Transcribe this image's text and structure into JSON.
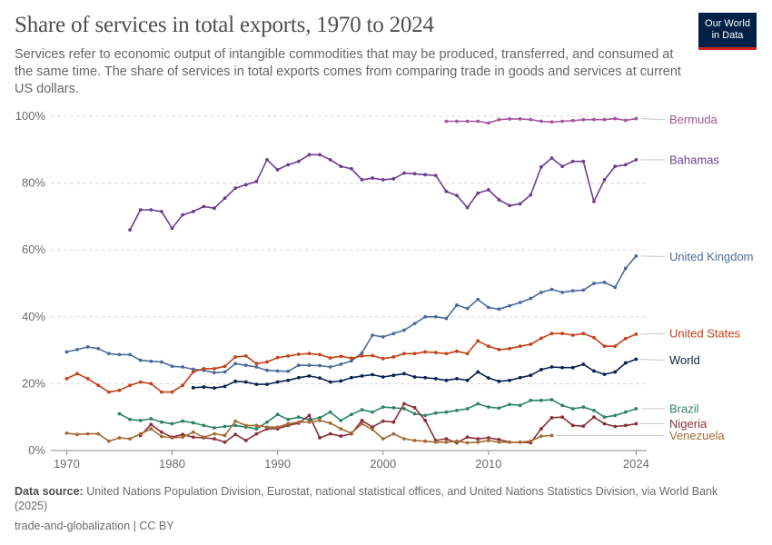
{
  "header": {
    "title": "Share of services in total exports, 1970 to 2024",
    "subtitle": "Services refer to economic output of intangible commodities that may be produced, transferred, and consumed at the same time. The share of services in total exports comes from comparing trade in goods and services at current US dollars."
  },
  "logo": {
    "line1": "Our World",
    "line2": "in Data"
  },
  "footer": {
    "source_label": "Data source:",
    "source_text": "United Nations Population Division, Eurostat, national statistical offices, and United Nations Statistics Division, via World Bank (2025)",
    "license": "trade-and-globalization | CC BY"
  },
  "chart_data": {
    "type": "line",
    "title": "Share of services in total exports, 1970 to 2024",
    "xlim": [
      1968.5,
      2025
    ],
    "ylim": [
      0,
      100
    ],
    "x_ticks": [
      {
        "value": 1970,
        "label": "1970"
      },
      {
        "value": 1980,
        "label": "1980"
      },
      {
        "value": 1990,
        "label": "1990"
      },
      {
        "value": 2000,
        "label": "2000"
      },
      {
        "value": 2010,
        "label": "2010"
      },
      {
        "value": 2024,
        "label": "2024"
      }
    ],
    "y_ticks": [
      {
        "value": 0,
        "label": "0%"
      },
      {
        "value": 20,
        "label": "20%"
      },
      {
        "value": 40,
        "label": "40%"
      },
      {
        "value": 60,
        "label": "60%"
      },
      {
        "value": 80,
        "label": "80%"
      },
      {
        "value": 100,
        "label": "100%"
      }
    ],
    "grid": "horizontal dashed",
    "legend": "inline labels at right",
    "series": [
      {
        "name": "Bermuda",
        "color": "#a2559c",
        "label_value": 99,
        "x": [
          2006,
          2007,
          2008,
          2009,
          2010,
          2011,
          2012,
          2013,
          2014,
          2015,
          2016,
          2017,
          2018,
          2019,
          2020,
          2021,
          2022,
          2023,
          2024
        ],
        "values": [
          98.5,
          98.5,
          98.5,
          98.5,
          98,
          99,
          99.2,
          99.2,
          99,
          98.5,
          98.3,
          98.5,
          98.7,
          99,
          99,
          99,
          99.3,
          98.8,
          99.3
        ]
      },
      {
        "name": "Bahamas",
        "color": "#6d3e91",
        "label_value": 87,
        "x": [
          1976,
          1977,
          1978,
          1979,
          1980,
          1981,
          1982,
          1983,
          1984,
          1985,
          1986,
          1987,
          1988,
          1989,
          1990,
          1991,
          1992,
          1993,
          1994,
          1995,
          1996,
          1997,
          1998,
          1999,
          2000,
          2001,
          2002,
          2003,
          2004,
          2005,
          2006,
          2007,
          2008,
          2009,
          2010,
          2011,
          2012,
          2013,
          2014,
          2015,
          2016,
          2017,
          2018,
          2019,
          2020,
          2021,
          2022,
          2023,
          2024
        ],
        "values": [
          66,
          72,
          72,
          71.5,
          66.5,
          70.5,
          71.5,
          73,
          72.5,
          75.5,
          78.5,
          79.5,
          80.5,
          87,
          84,
          85.5,
          86.5,
          88.5,
          88.5,
          87,
          85,
          84.3,
          81,
          81.5,
          81,
          81.3,
          83,
          82.8,
          82.5,
          82.3,
          77.5,
          76.3,
          72.7,
          77,
          78,
          75,
          73.3,
          73.8,
          76.5,
          84.8,
          87.5,
          85,
          86.5,
          86.5,
          74.5,
          81,
          85,
          85.5,
          87
        ]
      },
      {
        "name": "United Kingdom",
        "color": "#4c6a9c",
        "label_value": 58,
        "x": [
          1970,
          1971,
          1972,
          1973,
          1974,
          1975,
          1976,
          1977,
          1978,
          1979,
          1980,
          1981,
          1982,
          1983,
          1984,
          1985,
          1986,
          1987,
          1988,
          1989,
          1990,
          1991,
          1992,
          1993,
          1994,
          1995,
          1996,
          1997,
          1998,
          1999,
          2000,
          2001,
          2002,
          2003,
          2004,
          2005,
          2006,
          2007,
          2008,
          2009,
          2010,
          2011,
          2012,
          2013,
          2014,
          2015,
          2016,
          2017,
          2018,
          2019,
          2020,
          2021,
          2022,
          2023,
          2024
        ],
        "values": [
          29.5,
          30.2,
          31,
          30.5,
          29,
          28.7,
          28.7,
          27,
          26.7,
          26.5,
          25.2,
          25,
          24.3,
          24,
          23.3,
          23.5,
          26,
          25.5,
          25,
          24,
          23.8,
          23.7,
          25.5,
          25.5,
          25.4,
          25,
          25.8,
          26.8,
          29.2,
          34.5,
          34,
          35,
          36,
          38,
          40,
          40,
          39.5,
          43.5,
          42.5,
          45.2,
          42.8,
          42.3,
          43.3,
          44.3,
          45.5,
          47.3,
          48.2,
          47.3,
          47.8,
          48,
          50,
          50.3,
          48.8,
          54.5,
          58.2
        ]
      },
      {
        "name": "United States",
        "color": "#c4411a",
        "label_value": 35,
        "x": [
          1970,
          1971,
          1972,
          1973,
          1974,
          1975,
          1976,
          1977,
          1978,
          1979,
          1980,
          1981,
          1982,
          1983,
          1984,
          1985,
          1986,
          1987,
          1988,
          1989,
          1990,
          1991,
          1992,
          1993,
          1994,
          1995,
          1996,
          1997,
          1998,
          1999,
          2000,
          2001,
          2002,
          2003,
          2004,
          2005,
          2006,
          2007,
          2008,
          2009,
          2010,
          2011,
          2012,
          2013,
          2014,
          2015,
          2016,
          2017,
          2018,
          2019,
          2020,
          2021,
          2022,
          2023,
          2024
        ],
        "values": [
          21.5,
          23,
          21.5,
          19.5,
          17.5,
          18,
          19.5,
          20.5,
          20,
          17.5,
          17.5,
          19.5,
          23.5,
          24.5,
          24.5,
          25.2,
          28,
          28.3,
          26,
          26.5,
          27.8,
          28.3,
          28.8,
          29,
          28.7,
          27.7,
          28.2,
          27.6,
          28.3,
          28.4,
          27.5,
          28,
          29,
          29,
          29.5,
          29.3,
          29,
          29.7,
          29,
          32.8,
          31.2,
          30.2,
          30.5,
          31.2,
          31.8,
          33.6,
          35,
          35,
          34.5,
          35,
          33.8,
          31.2,
          31.2,
          33.5,
          34.8
        ]
      },
      {
        "name": "World",
        "color": "#0a2150",
        "label_value": 27,
        "x": [
          1982,
          1983,
          1984,
          1985,
          1986,
          1987,
          1988,
          1989,
          1990,
          1991,
          1992,
          1993,
          1994,
          1995,
          1996,
          1997,
          1998,
          1999,
          2000,
          2001,
          2002,
          2003,
          2004,
          2005,
          2006,
          2007,
          2008,
          2009,
          2010,
          2011,
          2012,
          2013,
          2014,
          2015,
          2016,
          2017,
          2018,
          2019,
          2020,
          2021,
          2022,
          2023,
          2024
        ],
        "values": [
          18.8,
          19,
          18.7,
          19.2,
          20.7,
          20.5,
          19.8,
          19.8,
          20.5,
          21,
          21.8,
          22.3,
          21.7,
          20.5,
          20.8,
          21.8,
          22.3,
          22.7,
          22,
          22.5,
          23,
          22,
          21.8,
          21.5,
          21,
          21.5,
          21,
          23.5,
          21.7,
          20.7,
          21,
          21.8,
          22.5,
          24.2,
          25,
          24.8,
          24.8,
          25.8,
          23.8,
          22.8,
          23.5,
          26.2,
          27.3
        ]
      },
      {
        "name": "Brazil",
        "color": "#2c8465",
        "label_value": 12.5,
        "x": [
          1975,
          1976,
          1977,
          1978,
          1979,
          1980,
          1981,
          1982,
          1983,
          1984,
          1985,
          1986,
          1987,
          1988,
          1989,
          1990,
          1991,
          1992,
          1993,
          1994,
          1995,
          1996,
          1997,
          1998,
          1999,
          2000,
          2001,
          2002,
          2003,
          2004,
          2005,
          2006,
          2007,
          2008,
          2009,
          2010,
          2011,
          2012,
          2013,
          2014,
          2015,
          2016,
          2017,
          2018,
          2019,
          2020,
          2021,
          2022,
          2023,
          2024
        ],
        "values": [
          11,
          9.3,
          9,
          9.5,
          8.5,
          8,
          8.8,
          8.3,
          7.5,
          6.8,
          7.2,
          7.5,
          7,
          6.5,
          8.5,
          10.8,
          9.3,
          10,
          9.2,
          9.8,
          11.5,
          9,
          10.8,
          12.2,
          11.5,
          13,
          12.8,
          12.5,
          11,
          10.5,
          11.2,
          11.5,
          12,
          12.5,
          14,
          13,
          12.7,
          13.8,
          13.5,
          15,
          15,
          15.2,
          13.5,
          12.5,
          13,
          12,
          10,
          10.5,
          11.5,
          12.5
        ]
      },
      {
        "name": "Nigeria",
        "color": "#883039",
        "label_value": 8,
        "x": [
          1977,
          1978,
          1979,
          1980,
          1981,
          1982,
          1983,
          1984,
          1985,
          1986,
          1987,
          1988,
          1989,
          1990,
          1991,
          1992,
          1993,
          1994,
          1995,
          1996,
          1997,
          1998,
          1999,
          2000,
          2001,
          2002,
          2003,
          2004,
          2005,
          2006,
          2007,
          2008,
          2009,
          2010,
          2011,
          2012,
          2013,
          2014,
          2015,
          2016,
          2017,
          2018,
          2019,
          2020,
          2021,
          2022,
          2023,
          2024
        ],
        "values": [
          4.5,
          7.8,
          5.5,
          4,
          4.8,
          4,
          3.8,
          3.5,
          2.5,
          4.8,
          3,
          5,
          6.5,
          6.5,
          7.5,
          8.2,
          10.5,
          3.8,
          5,
          4.3,
          5,
          9,
          7,
          8.8,
          8.5,
          14,
          12.8,
          9,
          3,
          3.5,
          2.3,
          4,
          3.5,
          3.8,
          3.3,
          2.5,
          2.5,
          2.3,
          6.5,
          9.8,
          10,
          7.5,
          7.3,
          10,
          8,
          7.2,
          7.5,
          8
        ]
      },
      {
        "name": "Venezuela",
        "color": "#a56a36",
        "label_value": 4.5,
        "x": [
          1970,
          1971,
          1972,
          1973,
          1974,
          1975,
          1976,
          1977,
          1978,
          1979,
          1980,
          1981,
          1982,
          1983,
          1984,
          1985,
          1986,
          1987,
          1988,
          1989,
          1990,
          1991,
          1992,
          1993,
          1994,
          1995,
          1996,
          1997,
          1998,
          1999,
          2000,
          2001,
          2002,
          2003,
          2004,
          2005,
          2006,
          2007,
          2008,
          2009,
          2010,
          2011,
          2012,
          2013,
          2014,
          2015,
          2016
        ],
        "values": [
          5.2,
          4.8,
          5,
          5,
          2.8,
          3.8,
          3.5,
          5,
          6.5,
          4.2,
          3.8,
          4,
          5.5,
          4,
          5,
          4.5,
          8.8,
          7.5,
          7.5,
          7,
          7,
          8,
          8.5,
          8.5,
          9,
          8.2,
          6.5,
          5.2,
          8,
          6.3,
          3.5,
          5,
          3.5,
          3,
          2.8,
          2.5,
          2.5,
          2.8,
          2.3,
          2.5,
          3,
          2.5,
          2.5,
          2.5,
          2.8,
          4.3,
          4.5
        ]
      }
    ]
  }
}
